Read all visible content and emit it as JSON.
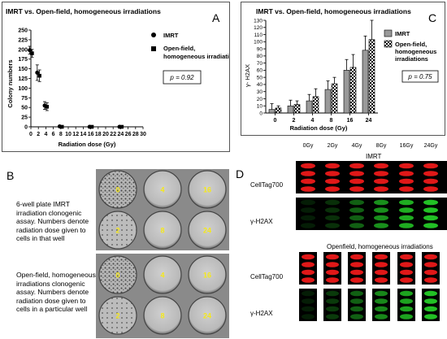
{
  "panel_a": {
    "letter": "A",
    "title": "IMRT vs. Open-field, homogeneous irradiations",
    "p_value": "p = 0.92",
    "legend": [
      "IMRT",
      "Open-field,",
      "homogeneous irradiations"
    ]
  },
  "panel_b": {
    "letter": "B",
    "caption_imrt": [
      "6-well plate IMRT",
      "irradiation clonogenic",
      "assay. Numbers denote",
      "radiation dose given to",
      "cells in that well"
    ],
    "caption_open": [
      "Open-field, homogeneous",
      "irradiations clonogenic",
      "assay. Numbers denote",
      "radiation dose given to",
      "cells in a particular well"
    ],
    "imrt_well_labels": [
      "0",
      "4",
      "16",
      "2",
      "8",
      "24"
    ],
    "open_well_labels": [
      "0",
      "4",
      "16",
      "2",
      "8",
      "24"
    ]
  },
  "panel_c": {
    "letter": "C",
    "title": "IMRT vs. Open-field, homogeneous irradiations",
    "p_value": "p = 0.75",
    "legend": [
      "IMRT",
      "Open-field,",
      "homogeneous",
      "irradiations"
    ]
  },
  "panel_d": {
    "letter": "D",
    "dose_headers": [
      "0Gy",
      "2Gy",
      "4Gy",
      "8Gy",
      "16Gy",
      "24Gy"
    ],
    "imrt_title": "IMRT",
    "open_title": "Openfield, homogeneous irradiations",
    "row_labels": [
      "CellTag700",
      "γ-H2AX",
      "CellTag700",
      "γ-H2AX"
    ]
  },
  "chart_data": [
    {
      "type": "scatter",
      "title": "IMRT vs. Open-field, homogeneous irradiations",
      "xlabel": "Radiation dose (Gy)",
      "ylabel": "Colony numbers",
      "xlim": [
        0,
        30
      ],
      "ylim": [
        0,
        250
      ],
      "x_ticks": [
        0,
        2,
        4,
        6,
        8,
        10,
        12,
        14,
        16,
        18,
        20,
        22,
        24,
        26,
        28,
        30
      ],
      "y_ticks": [
        0,
        25,
        50,
        75,
        100,
        125,
        150,
        175,
        200,
        225,
        250
      ],
      "series": [
        {
          "name": "IMRT",
          "x": [
            0,
            2,
            4,
            8,
            16,
            24
          ],
          "y": [
            198,
            140,
            55,
            1,
            0,
            0
          ],
          "err": [
            10,
            20,
            10,
            1,
            0,
            0
          ]
        },
        {
          "name": "Open-field, homogeneous irradiations",
          "x": [
            0,
            2,
            4,
            8,
            16,
            24
          ],
          "y": [
            190,
            132,
            52,
            0,
            0,
            0
          ],
          "err": [
            10,
            15,
            10,
            1,
            0,
            0
          ]
        }
      ],
      "annotation": "p = 0.92"
    },
    {
      "type": "bar",
      "title": "IMRT vs. Open-field, homogeneous irradiations",
      "xlabel": "Radiation dose (Gy)",
      "ylabel": "γ- H2AX",
      "categories": [
        "0",
        "2",
        "4",
        "8",
        "16",
        "24"
      ],
      "ylim": [
        0,
        130
      ],
      "y_ticks": [
        0,
        10,
        20,
        30,
        40,
        50,
        60,
        70,
        80,
        90,
        100,
        110,
        120,
        130
      ],
      "series": [
        {
          "name": "IMRT",
          "values": [
            5,
            10,
            17,
            33,
            60,
            88
          ],
          "err": [
            8,
            8,
            9,
            12,
            15,
            20
          ]
        },
        {
          "name": "Open-field, homogeneous irradiations",
          "values": [
            7,
            12,
            23,
            41,
            64,
            103
          ],
          "err": [
            3,
            5,
            11,
            9,
            18,
            27
          ]
        }
      ],
      "annotation": "p = 0.75"
    }
  ]
}
